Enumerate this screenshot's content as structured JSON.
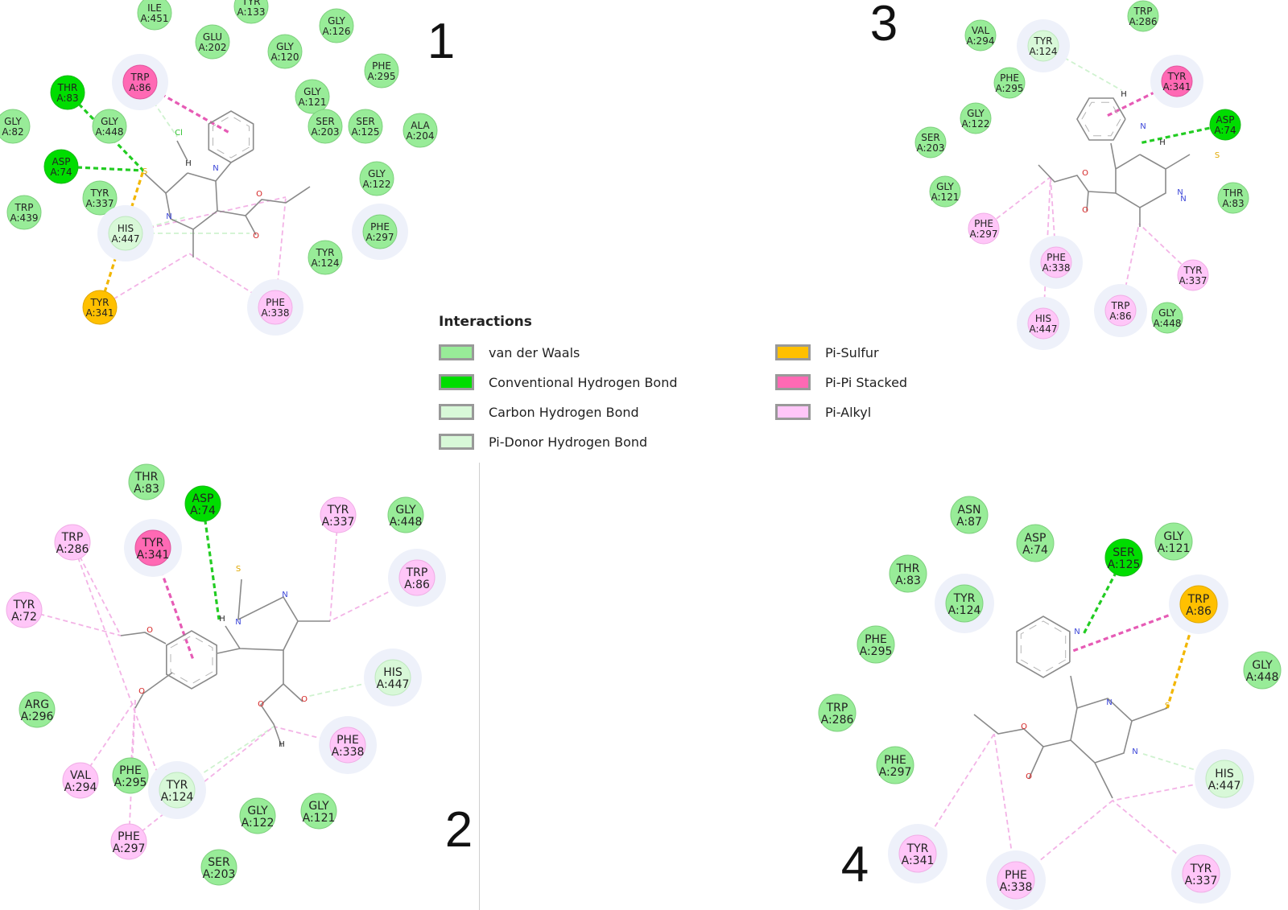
{
  "colors": {
    "vdw": "#98EC98",
    "hbond": "#00DD00",
    "chbond": "#D8F8D8",
    "pidonor": "#D8F8D8",
    "pisulfur": "#FFC000",
    "pipi": "#FF69B4",
    "pialkyl": "#FFC6F8"
  },
  "legend": {
    "title": "Interactions",
    "items": [
      {
        "type": "vdw",
        "label": "van der Waals"
      },
      {
        "type": "hbond",
        "label": "Conventional Hydrogen Bond"
      },
      {
        "type": "chbond",
        "label": "Carbon Hydrogen Bond"
      },
      {
        "type": "pidonor",
        "label": "Pi-Donor Hydrogen Bond"
      },
      {
        "type": "pisulfur",
        "label": "Pi-Sulfur"
      },
      {
        "type": "pipi",
        "label": "Pi-Pi Stacked"
      },
      {
        "type": "pialkyl",
        "label": "Pi-Alkyl"
      }
    ]
  },
  "panels": [
    {
      "number": "1",
      "residues": [
        {
          "name": "ILE",
          "num": "A:451",
          "type": "vdw"
        },
        {
          "name": "TYR",
          "num": "A:133",
          "type": "vdw"
        },
        {
          "name": "GLY",
          "num": "A:126",
          "type": "vdw"
        },
        {
          "name": "GLU",
          "num": "A:202",
          "type": "vdw"
        },
        {
          "name": "GLY",
          "num": "A:120",
          "type": "vdw"
        },
        {
          "name": "PHE",
          "num": "A:295",
          "type": "vdw"
        },
        {
          "name": "THR",
          "num": "A:83",
          "type": "hbond"
        },
        {
          "name": "TRP",
          "num": "A:86",
          "type": "pipi"
        },
        {
          "name": "GLY",
          "num": "A:121",
          "type": "vdw"
        },
        {
          "name": "GLY",
          "num": "A:448",
          "type": "vdw"
        },
        {
          "name": "SER",
          "num": "A:203",
          "type": "vdw"
        },
        {
          "name": "SER",
          "num": "A:125",
          "type": "vdw"
        },
        {
          "name": "ALA",
          "num": "A:204",
          "type": "vdw"
        },
        {
          "name": "GLY",
          "num": "A:82",
          "type": "vdw"
        },
        {
          "name": "ASP",
          "num": "A:74",
          "type": "hbond"
        },
        {
          "name": "GLY",
          "num": "A:122",
          "type": "vdw"
        },
        {
          "name": "TYR",
          "num": "A:337",
          "type": "vdw"
        },
        {
          "name": "TRP",
          "num": "A:439",
          "type": "vdw"
        },
        {
          "name": "HIS",
          "num": "A:447",
          "type": "chbond"
        },
        {
          "name": "PHE",
          "num": "A:297",
          "type": "vdw"
        },
        {
          "name": "TYR",
          "num": "A:124",
          "type": "vdw"
        },
        {
          "name": "TYR",
          "num": "A:341",
          "type": "pisulfur"
        },
        {
          "name": "PHE",
          "num": "A:338",
          "type": "pialkyl"
        }
      ],
      "atoms": [
        "Cl",
        "H",
        "N",
        "S",
        "N",
        "O",
        "O"
      ]
    },
    {
      "number": "3",
      "residues": [
        {
          "name": "TRP",
          "num": "A:286",
          "type": "vdw"
        },
        {
          "name": "VAL",
          "num": "A:294",
          "type": "vdw"
        },
        {
          "name": "TYR",
          "num": "A:124",
          "type": "chbond"
        },
        {
          "name": "TYR",
          "num": "A:341",
          "type": "pipi"
        },
        {
          "name": "PHE",
          "num": "A:295",
          "type": "vdw"
        },
        {
          "name": "ASP",
          "num": "A:74",
          "type": "hbond"
        },
        {
          "name": "GLY",
          "num": "A:122",
          "type": "vdw"
        },
        {
          "name": "SER",
          "num": "A:203",
          "type": "vdw"
        },
        {
          "name": "GLY",
          "num": "A:121",
          "type": "vdw"
        },
        {
          "name": "THR",
          "num": "A:83",
          "type": "vdw"
        },
        {
          "name": "PHE",
          "num": "A:297",
          "type": "pialkyl"
        },
        {
          "name": "PHE",
          "num": "A:338",
          "type": "pialkyl"
        },
        {
          "name": "TYR",
          "num": "A:337",
          "type": "pialkyl"
        },
        {
          "name": "HIS",
          "num": "A:447",
          "type": "pialkyl"
        },
        {
          "name": "TRP",
          "num": "A:86",
          "type": "pialkyl"
        },
        {
          "name": "GLY",
          "num": "A:448",
          "type": "vdw"
        }
      ],
      "atoms": [
        "H",
        "N",
        "H",
        "N",
        "S",
        "N",
        "O",
        "O"
      ]
    },
    {
      "number": "2",
      "residues": [
        {
          "name": "THR",
          "num": "A:83",
          "type": "vdw"
        },
        {
          "name": "ASP",
          "num": "A:74",
          "type": "hbond"
        },
        {
          "name": "TYR",
          "num": "A:337",
          "type": "pialkyl"
        },
        {
          "name": "GLY",
          "num": "A:448",
          "type": "vdw"
        },
        {
          "name": "TRP",
          "num": "A:286",
          "type": "pialkyl"
        },
        {
          "name": "TYR",
          "num": "A:341",
          "type": "pipi"
        },
        {
          "name": "TRP",
          "num": "A:86",
          "type": "pialkyl"
        },
        {
          "name": "TYR",
          "num": "A:72",
          "type": "pialkyl"
        },
        {
          "name": "HIS",
          "num": "A:447",
          "type": "chbond"
        },
        {
          "name": "ARG",
          "num": "A:296",
          "type": "vdw"
        },
        {
          "name": "PHE",
          "num": "A:338",
          "type": "pialkyl"
        },
        {
          "name": "VAL",
          "num": "A:294",
          "type": "pialkyl"
        },
        {
          "name": "PHE",
          "num": "A:295",
          "type": "vdw"
        },
        {
          "name": "TYR",
          "num": "A:124",
          "type": "chbond"
        },
        {
          "name": "GLY",
          "num": "A:122",
          "type": "vdw"
        },
        {
          "name": "GLY",
          "num": "A:121",
          "type": "vdw"
        },
        {
          "name": "PHE",
          "num": "A:297",
          "type": "pialkyl"
        },
        {
          "name": "SER",
          "num": "A:203",
          "type": "vdw"
        }
      ],
      "atoms": [
        "S",
        "H",
        "N",
        "N",
        "O",
        "O",
        "O",
        "O",
        "H"
      ]
    },
    {
      "number": "4",
      "residues": [
        {
          "name": "ASN",
          "num": "A:87",
          "type": "vdw"
        },
        {
          "name": "ASP",
          "num": "A:74",
          "type": "vdw"
        },
        {
          "name": "SER",
          "num": "A:125",
          "type": "hbond"
        },
        {
          "name": "GLY",
          "num": "A:121",
          "type": "vdw"
        },
        {
          "name": "THR",
          "num": "A:83",
          "type": "vdw"
        },
        {
          "name": "TYR",
          "num": "A:124",
          "type": "vdw"
        },
        {
          "name": "TRP",
          "num": "A:86",
          "type": "pisulfur"
        },
        {
          "name": "PHE",
          "num": "A:295",
          "type": "vdw"
        },
        {
          "name": "GLY",
          "num": "A:448",
          "type": "vdw"
        },
        {
          "name": "TRP",
          "num": "A:286",
          "type": "vdw"
        },
        {
          "name": "PHE",
          "num": "A:297",
          "type": "vdw"
        },
        {
          "name": "HIS",
          "num": "A:447",
          "type": "chbond"
        },
        {
          "name": "TYR",
          "num": "A:341",
          "type": "pialkyl"
        },
        {
          "name": "PHE",
          "num": "A:338",
          "type": "pialkyl"
        },
        {
          "name": "TYR",
          "num": "A:337",
          "type": "pialkyl"
        }
      ],
      "atoms": [
        "N",
        "N",
        "S",
        "N",
        "O",
        "O"
      ]
    }
  ]
}
